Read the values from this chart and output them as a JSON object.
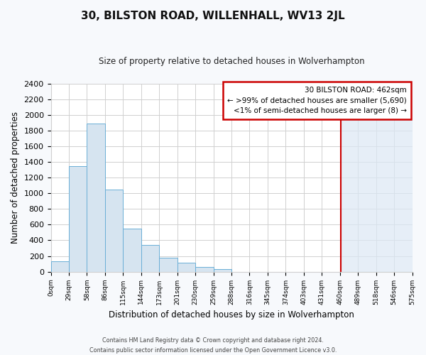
{
  "title": "30, BILSTON ROAD, WILLENHALL, WV13 2JL",
  "subtitle": "Size of property relative to detached houses in Wolverhampton",
  "xlabel": "Distribution of detached houses by size in Wolverhampton",
  "ylabel": "Number of detached properties",
  "bin_labels": [
    "0sqm",
    "29sqm",
    "58sqm",
    "86sqm",
    "115sqm",
    "144sqm",
    "173sqm",
    "201sqm",
    "230sqm",
    "259sqm",
    "288sqm",
    "316sqm",
    "345sqm",
    "374sqm",
    "403sqm",
    "431sqm",
    "460sqm",
    "489sqm",
    "518sqm",
    "546sqm",
    "575sqm"
  ],
  "bar_heights": [
    130,
    1350,
    1890,
    1050,
    550,
    340,
    175,
    115,
    60,
    30,
    0,
    0,
    0,
    0,
    0,
    0,
    0,
    0,
    0,
    0
  ],
  "bar_color": "#d6e4f0",
  "bar_edge_color": "#6aaed6",
  "highlight_color": "#dce8f5",
  "vline_x": 16.07,
  "vline_color": "#cc0000",
  "ylim": [
    0,
    2400
  ],
  "yticks": [
    0,
    200,
    400,
    600,
    800,
    1000,
    1200,
    1400,
    1600,
    1800,
    2000,
    2200,
    2400
  ],
  "annotation_title": "30 BILSTON ROAD: 462sqm",
  "annotation_line1": "← >99% of detached houses are smaller (5,690)",
  "annotation_line2": "<1% of semi-detached houses are larger (8) →",
  "annotation_box_color": "#cc0000",
  "footer_line1": "Contains HM Land Registry data © Crown copyright and database right 2024.",
  "footer_line2": "Contains public sector information licensed under the Open Government Licence v3.0.",
  "background_color": "#f7f9fc",
  "plot_background": "#ffffff",
  "grid_color": "#d0d0d0"
}
